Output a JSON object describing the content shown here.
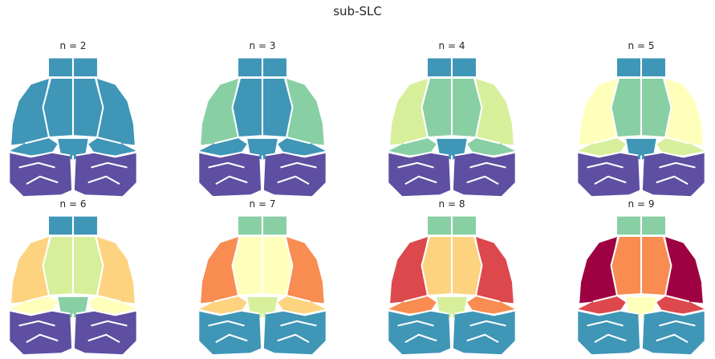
{
  "figure": {
    "title": "sub-SLC"
  },
  "palette": [
    "#5e4fa2",
    "#3f96b7",
    "#88cfa4",
    "#d7ef9b",
    "#ffffbc",
    "#fdd380",
    "#f88c51",
    "#dc484c",
    "#9e0142"
  ],
  "panels": [
    {
      "title": "n = 2",
      "n": 2
    },
    {
      "title": "n = 3",
      "n": 3
    },
    {
      "title": "n = 4",
      "n": 4
    },
    {
      "title": "n = 5",
      "n": 5
    },
    {
      "title": "n = 6",
      "n": 6
    },
    {
      "title": "n = 7",
      "n": 7
    },
    {
      "title": "n = 8",
      "n": 8
    },
    {
      "title": "n = 9",
      "n": 9
    }
  ]
}
